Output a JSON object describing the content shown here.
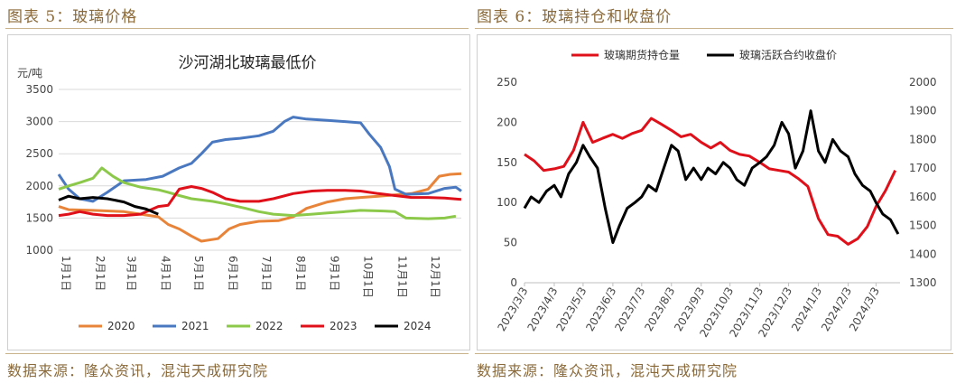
{
  "left": {
    "fig_label": "图表 5：玻璃价格",
    "source": "数据来源：隆众资讯，混沌天成研究院"
  },
  "right": {
    "fig_label": "图表 6：玻璃持仓和收盘价",
    "source": "数据来源：隆众资讯，混沌天成研究院"
  },
  "colors": {
    "2020": "#e8843a",
    "2021": "#4a78c0",
    "2022": "#8cc84a",
    "2023": "#e0101a",
    "2024": "#000000",
    "oi": "#e0101a",
    "close": "#000000",
    "label_gold": "#8a6a3a"
  },
  "chart_data": [
    {
      "type": "line",
      "title": "沙河湖北玻璃最低价",
      "ylabel": "元/吨",
      "ylim": [
        1000,
        3500
      ],
      "yticks": [
        "1000",
        "1500",
        "2000",
        "2500",
        "3000",
        "3500"
      ],
      "xlim": [
        1,
        365
      ],
      "x_ticks": [
        {
          "label": "1月1日",
          "day": 1
        },
        {
          "label": "2月1日",
          "day": 32
        },
        {
          "label": "3月1日",
          "day": 60
        },
        {
          "label": "4月1日",
          "day": 91
        },
        {
          "label": "5月1日",
          "day": 121
        },
        {
          "label": "6月1日",
          "day": 152
        },
        {
          "label": "7月1日",
          "day": 182
        },
        {
          "label": "8月1日",
          "day": 213
        },
        {
          "label": "9月1日",
          "day": 244
        },
        {
          "label": "10月1日",
          "day": 274
        },
        {
          "label": "11月1日",
          "day": 305
        },
        {
          "label": "12月1日",
          "day": 335
        }
      ],
      "grid": "horizontal",
      "legend": "bottom",
      "series": [
        {
          "name": "2020",
          "points": [
            [
              1,
              1680
            ],
            [
              10,
              1630
            ],
            [
              32,
              1620
            ],
            [
              60,
              1600
            ],
            [
              75,
              1560
            ],
            [
              91,
              1520
            ],
            [
              100,
              1400
            ],
            [
              110,
              1330
            ],
            [
              121,
              1220
            ],
            [
              130,
              1140
            ],
            [
              145,
              1180
            ],
            [
              155,
              1330
            ],
            [
              165,
              1400
            ],
            [
              182,
              1450
            ],
            [
              200,
              1460
            ],
            [
              213,
              1520
            ],
            [
              225,
              1650
            ],
            [
              244,
              1750
            ],
            [
              260,
              1800
            ],
            [
              274,
              1820
            ],
            [
              290,
              1840
            ],
            [
              305,
              1860
            ],
            [
              320,
              1880
            ],
            [
              335,
              1950
            ],
            [
              345,
              2150
            ],
            [
              355,
              2180
            ],
            [
              365,
              2190
            ]
          ]
        },
        {
          "name": "2021",
          "points": [
            [
              1,
              2180
            ],
            [
              10,
              1950
            ],
            [
              20,
              1800
            ],
            [
              32,
              1760
            ],
            [
              45,
              1900
            ],
            [
              60,
              2080
            ],
            [
              80,
              2100
            ],
            [
              95,
              2150
            ],
            [
              110,
              2280
            ],
            [
              121,
              2350
            ],
            [
              130,
              2500
            ],
            [
              140,
              2680
            ],
            [
              152,
              2720
            ],
            [
              165,
              2740
            ],
            [
              182,
              2780
            ],
            [
              195,
              2850
            ],
            [
              205,
              3000
            ],
            [
              213,
              3070
            ],
            [
              225,
              3040
            ],
            [
              244,
              3020
            ],
            [
              260,
              3000
            ],
            [
              274,
              2980
            ],
            [
              282,
              2800
            ],
            [
              292,
              2600
            ],
            [
              300,
              2300
            ],
            [
              305,
              1950
            ],
            [
              315,
              1870
            ],
            [
              335,
              1880
            ],
            [
              350,
              1960
            ],
            [
              360,
              1980
            ],
            [
              365,
              1920
            ]
          ]
        },
        {
          "name": "2022",
          "points": [
            [
              1,
              1950
            ],
            [
              10,
              2000
            ],
            [
              20,
              2050
            ],
            [
              32,
              2120
            ],
            [
              40,
              2280
            ],
            [
              50,
              2150
            ],
            [
              60,
              2050
            ],
            [
              75,
              1980
            ],
            [
              91,
              1940
            ],
            [
              100,
              1900
            ],
            [
              110,
              1850
            ],
            [
              121,
              1800
            ],
            [
              140,
              1760
            ],
            [
              152,
              1720
            ],
            [
              170,
              1650
            ],
            [
              182,
              1600
            ],
            [
              195,
              1560
            ],
            [
              213,
              1540
            ],
            [
              230,
              1560
            ],
            [
              244,
              1580
            ],
            [
              260,
              1600
            ],
            [
              274,
              1620
            ],
            [
              295,
              1610
            ],
            [
              305,
              1600
            ],
            [
              315,
              1500
            ],
            [
              335,
              1490
            ],
            [
              350,
              1500
            ],
            [
              360,
              1530
            ]
          ]
        },
        {
          "name": "2023",
          "points": [
            [
              1,
              1540
            ],
            [
              10,
              1560
            ],
            [
              20,
              1600
            ],
            [
              32,
              1560
            ],
            [
              45,
              1540
            ],
            [
              60,
              1540
            ],
            [
              75,
              1560
            ],
            [
              91,
              1680
            ],
            [
              100,
              1700
            ],
            [
              110,
              1950
            ],
            [
              121,
              1990
            ],
            [
              130,
              1960
            ],
            [
              140,
              1900
            ],
            [
              152,
              1800
            ],
            [
              165,
              1760
            ],
            [
              182,
              1760
            ],
            [
              195,
              1800
            ],
            [
              213,
              1880
            ],
            [
              230,
              1920
            ],
            [
              244,
              1930
            ],
            [
              260,
              1930
            ],
            [
              274,
              1920
            ],
            [
              290,
              1880
            ],
            [
              305,
              1850
            ],
            [
              320,
              1820
            ],
            [
              335,
              1820
            ],
            [
              350,
              1810
            ],
            [
              365,
              1790
            ]
          ]
        },
        {
          "name": "2024",
          "points": [
            [
              1,
              1780
            ],
            [
              10,
              1840
            ],
            [
              20,
              1800
            ],
            [
              32,
              1820
            ],
            [
              45,
              1800
            ],
            [
              60,
              1750
            ],
            [
              70,
              1680
            ],
            [
              80,
              1640
            ],
            [
              91,
              1560
            ]
          ]
        }
      ]
    },
    {
      "type": "line",
      "legend": "top",
      "x_ticks": [
        "2023/3/3",
        "2023/4/3",
        "2023/5/3",
        "2023/6/3",
        "2023/7/3",
        "2023/8/3",
        "2023/9/3",
        "2023/10/3",
        "2023/11/3",
        "2023/12/3",
        "2024/1/3",
        "2024/2/3",
        "2024/3/3"
      ],
      "x_tick_dates": [
        "2023-03-03",
        "2023-04-03",
        "2023-05-03",
        "2023-06-03",
        "2023-07-03",
        "2023-08-03",
        "2023-09-03",
        "2023-10-03",
        "2023-11-03",
        "2023-12-03",
        "2024-01-03",
        "2024-02-03",
        "2024-03-03"
      ],
      "xlim": [
        "2023-03-03",
        "2024-03-28"
      ],
      "y_left": {
        "ylim": [
          0,
          250
        ],
        "ticks": [
          "0",
          "50",
          "100",
          "150",
          "200",
          "250"
        ]
      },
      "y_right": {
        "ylim": [
          1300,
          2000
        ],
        "ticks": [
          "1300",
          "1400",
          "1500",
          "1600",
          "1700",
          "1800",
          "1900",
          "2000"
        ]
      },
      "grid": "none",
      "series": [
        {
          "name": "玻璃期货持仓量",
          "axis": "left",
          "points": [
            [
              "2023-03-03",
              160
            ],
            [
              "2023-03-13",
              152
            ],
            [
              "2023-03-23",
              140
            ],
            [
              "2023-04-03",
              142
            ],
            [
              "2023-04-13",
              145
            ],
            [
              "2023-04-23",
              165
            ],
            [
              "2023-05-03",
              200
            ],
            [
              "2023-05-13",
              175
            ],
            [
              "2023-05-23",
              180
            ],
            [
              "2023-06-03",
              185
            ],
            [
              "2023-06-13",
              180
            ],
            [
              "2023-06-23",
              186
            ],
            [
              "2023-07-03",
              190
            ],
            [
              "2023-07-13",
              205
            ],
            [
              "2023-07-23",
              198
            ],
            [
              "2023-08-03",
              190
            ],
            [
              "2023-08-13",
              182
            ],
            [
              "2023-08-23",
              185
            ],
            [
              "2023-09-03",
              175
            ],
            [
              "2023-09-13",
              168
            ],
            [
              "2023-09-23",
              175
            ],
            [
              "2023-10-03",
              165
            ],
            [
              "2023-10-13",
              160
            ],
            [
              "2023-10-23",
              158
            ],
            [
              "2023-11-03",
              150
            ],
            [
              "2023-11-13",
              142
            ],
            [
              "2023-11-23",
              140
            ],
            [
              "2023-12-03",
              138
            ],
            [
              "2023-12-13",
              130
            ],
            [
              "2023-12-23",
              120
            ],
            [
              "2024-01-03",
              80
            ],
            [
              "2024-01-13",
              60
            ],
            [
              "2024-01-23",
              58
            ],
            [
              "2024-02-03",
              48
            ],
            [
              "2024-02-13",
              55
            ],
            [
              "2024-02-23",
              70
            ],
            [
              "2024-03-03",
              95
            ],
            [
              "2024-03-13",
              115
            ],
            [
              "2024-03-23",
              140
            ]
          ]
        },
        {
          "name": "玻璃活跃合约收盘价",
          "axis": "right",
          "points": [
            [
              "2023-03-03",
              1560
            ],
            [
              "2023-03-10",
              1600
            ],
            [
              "2023-03-18",
              1580
            ],
            [
              "2023-03-26",
              1620
            ],
            [
              "2023-04-03",
              1640
            ],
            [
              "2023-04-10",
              1600
            ],
            [
              "2023-04-18",
              1680
            ],
            [
              "2023-04-26",
              1720
            ],
            [
              "2023-05-03",
              1780
            ],
            [
              "2023-05-10",
              1740
            ],
            [
              "2023-05-18",
              1700
            ],
            [
              "2023-05-26",
              1560
            ],
            [
              "2023-06-03",
              1440
            ],
            [
              "2023-06-10",
              1500
            ],
            [
              "2023-06-18",
              1560
            ],
            [
              "2023-06-26",
              1580
            ],
            [
              "2023-07-03",
              1600
            ],
            [
              "2023-07-10",
              1640
            ],
            [
              "2023-07-18",
              1620
            ],
            [
              "2023-07-26",
              1700
            ],
            [
              "2023-08-03",
              1780
            ],
            [
              "2023-08-10",
              1760
            ],
            [
              "2023-08-18",
              1660
            ],
            [
              "2023-08-26",
              1700
            ],
            [
              "2023-09-03",
              1660
            ],
            [
              "2023-09-10",
              1700
            ],
            [
              "2023-09-18",
              1680
            ],
            [
              "2023-09-26",
              1720
            ],
            [
              "2023-10-03",
              1700
            ],
            [
              "2023-10-10",
              1660
            ],
            [
              "2023-10-18",
              1640
            ],
            [
              "2023-10-26",
              1700
            ],
            [
              "2023-11-03",
              1720
            ],
            [
              "2023-11-10",
              1740
            ],
            [
              "2023-11-18",
              1780
            ],
            [
              "2023-11-26",
              1860
            ],
            [
              "2023-12-03",
              1820
            ],
            [
              "2023-12-10",
              1700
            ],
            [
              "2023-12-18",
              1760
            ],
            [
              "2023-12-26",
              1900
            ],
            [
              "2024-01-03",
              1760
            ],
            [
              "2024-01-10",
              1720
            ],
            [
              "2024-01-18",
              1800
            ],
            [
              "2024-01-26",
              1760
            ],
            [
              "2024-02-03",
              1740
            ],
            [
              "2024-02-10",
              1680
            ],
            [
              "2024-02-18",
              1640
            ],
            [
              "2024-02-26",
              1620
            ],
            [
              "2024-03-03",
              1580
            ],
            [
              "2024-03-10",
              1540
            ],
            [
              "2024-03-18",
              1520
            ],
            [
              "2024-03-26",
              1470
            ]
          ]
        }
      ]
    }
  ]
}
